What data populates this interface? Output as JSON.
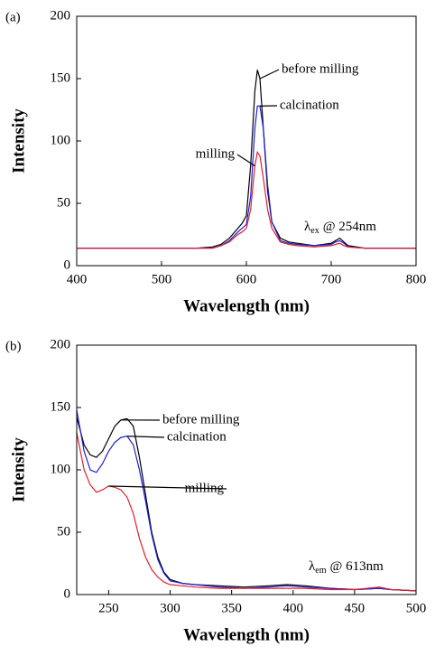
{
  "chart_data": [
    {
      "type": "line",
      "panel_label": "(a)",
      "xlabel": "Wavelength (nm)",
      "ylabel": "Intensity",
      "xlim": [
        400,
        800
      ],
      "xticks": [
        400,
        500,
        600,
        700,
        800
      ],
      "ylim": [
        0,
        200
      ],
      "yticks": [
        0,
        50,
        100,
        150,
        200
      ],
      "annotation": {
        "symbol": "λ",
        "subscript": "ex",
        "text": "@ 254nm"
      },
      "x": [
        400,
        420,
        440,
        460,
        480,
        500,
        520,
        540,
        560,
        570,
        580,
        590,
        595,
        600,
        605,
        610,
        613,
        616,
        620,
        625,
        630,
        640,
        650,
        660,
        680,
        700,
        705,
        710,
        715,
        720,
        740,
        760,
        780,
        800
      ],
      "series": [
        {
          "name": "before milling",
          "color": "#000000",
          "values": [
            14,
            14,
            14,
            14,
            14,
            14,
            14,
            14,
            15,
            17,
            22,
            30,
            34,
            40,
            80,
            140,
            157,
            150,
            110,
            60,
            35,
            22,
            19,
            18,
            16,
            18,
            20,
            22,
            19,
            16,
            14,
            14,
            14,
            14
          ]
        },
        {
          "name": "calcination",
          "color": "#2020d0",
          "values": [
            14,
            14,
            14,
            14,
            14,
            14,
            14,
            14,
            14,
            16,
            20,
            27,
            30,
            33,
            55,
            110,
            128,
            128,
            110,
            65,
            35,
            20,
            18,
            17,
            16,
            17,
            19,
            20,
            18,
            15,
            14,
            14,
            14,
            14
          ]
        },
        {
          "name": "milling",
          "color": "#e02030",
          "values": [
            14,
            14,
            14,
            14,
            14,
            14,
            14,
            14,
            14,
            16,
            19,
            25,
            27,
            30,
            45,
            80,
            91,
            88,
            70,
            45,
            30,
            19,
            17,
            16,
            15,
            16,
            17,
            18,
            16,
            15,
            14,
            14,
            14,
            14
          ]
        }
      ]
    },
    {
      "type": "line",
      "panel_label": "(b)",
      "xlabel": "Wavelength (nm)",
      "ylabel": "Intensity",
      "xlim": [
        224,
        500
      ],
      "xticks": [
        250,
        300,
        350,
        400,
        450,
        500
      ],
      "ylim": [
        0,
        200
      ],
      "yticks": [
        0,
        50,
        100,
        150,
        200
      ],
      "annotation": {
        "symbol": "λ",
        "subscript": "em",
        "text": "@ 613nm"
      },
      "x": [
        224,
        230,
        235,
        240,
        245,
        250,
        255,
        260,
        265,
        270,
        275,
        280,
        285,
        290,
        295,
        300,
        310,
        320,
        340,
        360,
        380,
        395,
        410,
        430,
        450,
        470,
        480,
        500
      ],
      "series": [
        {
          "name": "before milling",
          "color": "#000000",
          "values": [
            142,
            120,
            112,
            110,
            115,
            125,
            135,
            140,
            141,
            135,
            110,
            80,
            50,
            30,
            18,
            12,
            9,
            8,
            7,
            6,
            7,
            8,
            7,
            5,
            4,
            5,
            4,
            3
          ]
        },
        {
          "name": "calcination",
          "color": "#2020d0",
          "values": [
            148,
            115,
            100,
            98,
            105,
            115,
            122,
            126,
            127,
            120,
            100,
            75,
            48,
            28,
            17,
            11,
            9,
            8,
            6,
            5,
            6,
            7,
            6,
            5,
            4,
            5,
            4,
            3
          ]
        },
        {
          "name": "milling",
          "color": "#e02030",
          "values": [
            130,
            100,
            88,
            82,
            84,
            87,
            86,
            84,
            78,
            65,
            45,
            30,
            20,
            14,
            10,
            8,
            7,
            6,
            5,
            5,
            5,
            5,
            5,
            4,
            4,
            6,
            4,
            3
          ]
        }
      ]
    }
  ]
}
